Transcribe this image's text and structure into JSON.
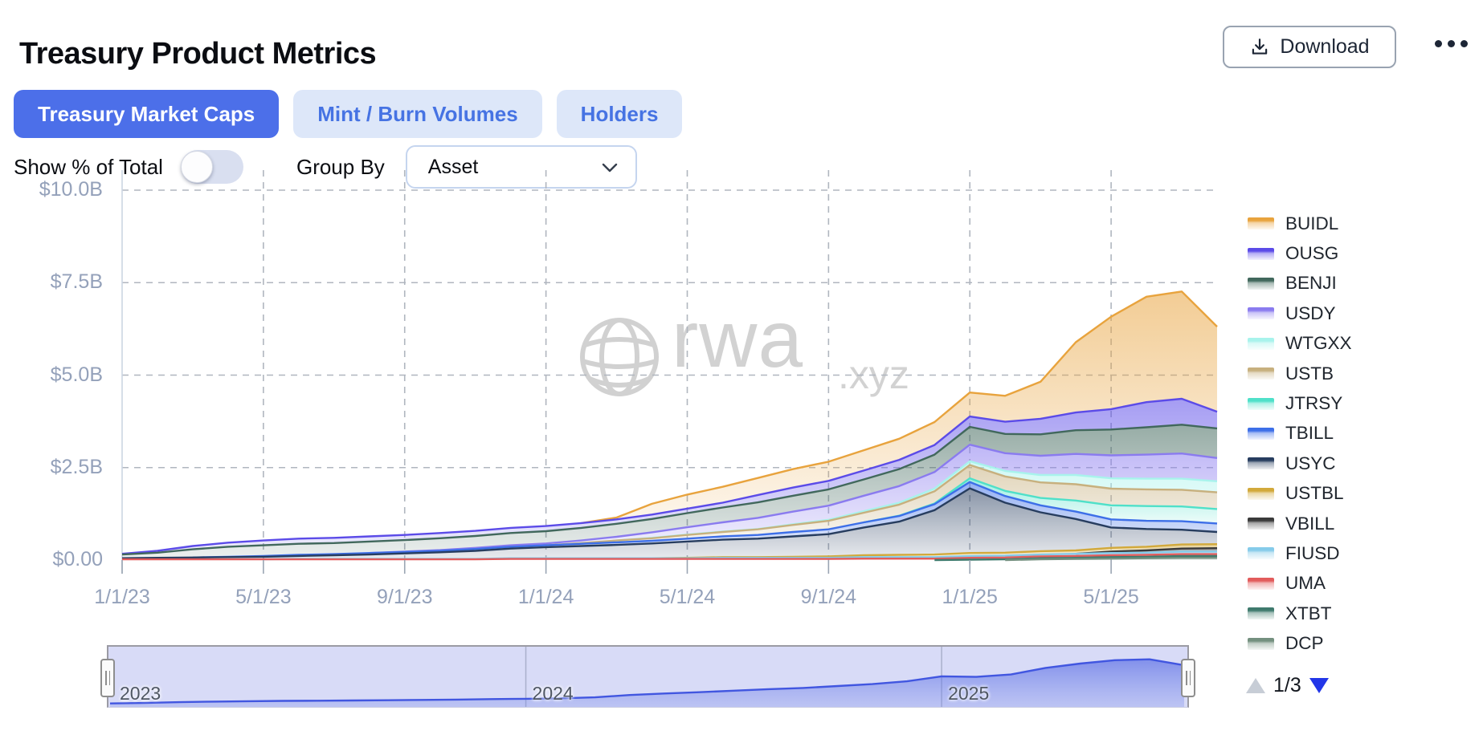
{
  "header": {
    "title": "Treasury Product Metrics",
    "download_label": "Download"
  },
  "tabs": [
    {
      "label": "Treasury Market Caps",
      "active": true
    },
    {
      "label": "Mint / Burn Volumes",
      "active": false
    },
    {
      "label": "Holders",
      "active": false
    }
  ],
  "controls": {
    "show_percent_label": "Show % of Total",
    "show_percent_on": false,
    "group_by_label": "Group By",
    "group_by_value": "Asset"
  },
  "watermark": {
    "main": "rwa",
    "suffix": ".xyz"
  },
  "colors": {
    "accent_blue": "#4c6fe9",
    "tab_inactive_bg": "#dde7f9",
    "axis_label": "#94a1ba",
    "gridline": "#b0b6bf",
    "navigator_bg": "#d8dbf7",
    "navigator_line": "#4156e0"
  },
  "legend": {
    "pagination": {
      "label": "1/3",
      "up_enabled": false,
      "down_enabled": true
    }
  },
  "navigator": {
    "years": [
      "2023",
      "2024",
      "2025"
    ],
    "year_month_index": [
      0,
      12,
      24
    ],
    "range_selected": "full"
  },
  "chart_data": {
    "type": "area",
    "stacked": true,
    "title": "Treasury Product Metrics — Treasury Market Caps",
    "y_unit": "USD billions",
    "ylim": [
      0,
      10
    ],
    "grid": "dashed",
    "legend_position": "right",
    "y_ticks": [
      {
        "label": "$0.00",
        "value": 0
      },
      {
        "label": "$2.5B",
        "value": 2.5
      },
      {
        "label": "$5.0B",
        "value": 5.0
      },
      {
        "label": "$7.5B",
        "value": 7.5
      },
      {
        "label": "$10.0B",
        "value": 10.0
      }
    ],
    "x_monthly_start": "1/2023",
    "x_monthly_end": "8/2025",
    "x_ticks": [
      {
        "label": "1/1/23",
        "month": 0
      },
      {
        "label": "5/1/23",
        "month": 4
      },
      {
        "label": "9/1/23",
        "month": 8
      },
      {
        "label": "1/1/24",
        "month": 12
      },
      {
        "label": "5/1/24",
        "month": 16
      },
      {
        "label": "9/1/24",
        "month": 20
      },
      {
        "label": "1/1/25",
        "month": 24
      },
      {
        "label": "5/1/25",
        "month": 28
      }
    ],
    "stacking_note": "series listed top-of-stack first (legend order); values in $B per month Jan-2023 .. Aug-2025",
    "series": [
      {
        "name": "BUIDL",
        "color": "#e8a33d",
        "values": [
          0,
          0,
          0,
          0,
          0,
          0,
          0,
          0,
          0,
          0,
          0,
          0,
          0,
          0,
          0.05,
          0.29,
          0.38,
          0.43,
          0.46,
          0.5,
          0.52,
          0.55,
          0.57,
          0.62,
          0.65,
          0.7,
          1.0,
          1.9,
          2.5,
          2.85,
          2.9,
          2.3
        ]
      },
      {
        "name": "OUSG",
        "color": "#5b4be8",
        "values": [
          0.02,
          0.05,
          0.09,
          0.11,
          0.13,
          0.14,
          0.14,
          0.14,
          0.14,
          0.14,
          0.14,
          0.14,
          0.14,
          0.13,
          0.12,
          0.12,
          0.12,
          0.13,
          0.2,
          0.22,
          0.23,
          0.24,
          0.25,
          0.26,
          0.28,
          0.33,
          0.42,
          0.48,
          0.55,
          0.68,
          0.7,
          0.45
        ]
      },
      {
        "name": "BENJI",
        "color": "#41685c",
        "values": [
          0.1,
          0.14,
          0.22,
          0.27,
          0.29,
          0.3,
          0.3,
          0.31,
          0.31,
          0.32,
          0.32,
          0.33,
          0.33,
          0.34,
          0.35,
          0.36,
          0.38,
          0.4,
          0.42,
          0.43,
          0.44,
          0.44,
          0.46,
          0.47,
          0.48,
          0.52,
          0.58,
          0.64,
          0.7,
          0.74,
          0.78,
          0.8
        ]
      },
      {
        "name": "USDY",
        "color": "#8a7bef",
        "values": [
          0,
          0,
          0,
          0,
          0,
          0,
          0,
          0,
          0.01,
          0.02,
          0.03,
          0.04,
          0.05,
          0.07,
          0.1,
          0.15,
          0.2,
          0.25,
          0.3,
          0.34,
          0.38,
          0.42,
          0.45,
          0.45,
          0.45,
          0.48,
          0.52,
          0.57,
          0.62,
          0.65,
          0.68,
          0.63
        ]
      },
      {
        "name": "WTGXX",
        "color": "#a8f3ec",
        "values": [
          0,
          0,
          0,
          0,
          0,
          0,
          0,
          0,
          0,
          0,
          0,
          0,
          0,
          0,
          0,
          0.01,
          0.01,
          0.01,
          0.01,
          0.02,
          0.03,
          0.04,
          0.05,
          0.07,
          0.1,
          0.15,
          0.2,
          0.25,
          0.28,
          0.29,
          0.3,
          0.3
        ]
      },
      {
        "name": "USTB",
        "color": "#c7b07e",
        "values": [
          0,
          0,
          0,
          0,
          0,
          0,
          0,
          0,
          0,
          0,
          0,
          0,
          0,
          0.02,
          0.05,
          0.07,
          0.1,
          0.12,
          0.15,
          0.19,
          0.23,
          0.26,
          0.3,
          0.33,
          0.36,
          0.39,
          0.42,
          0.44,
          0.45,
          0.45,
          0.45,
          0.45
        ]
      },
      {
        "name": "JTRSY",
        "color": "#4fe0c9",
        "values": [
          0,
          0,
          0,
          0,
          0,
          0,
          0,
          0,
          0,
          0,
          0,
          0,
          0,
          0,
          0,
          0,
          0,
          0,
          0,
          0,
          0,
          0,
          0.01,
          0.02,
          0.1,
          0.14,
          0.2,
          0.3,
          0.38,
          0.4,
          0.4,
          0.39
        ]
      },
      {
        "name": "TBILL",
        "color": "#3d6fe8",
        "values": [
          0,
          0,
          0,
          0.01,
          0.02,
          0.03,
          0.03,
          0.04,
          0.04,
          0.04,
          0.05,
          0.05,
          0.05,
          0.06,
          0.07,
          0.07,
          0.08,
          0.09,
          0.1,
          0.12,
          0.13,
          0.14,
          0.15,
          0.16,
          0.17,
          0.18,
          0.19,
          0.2,
          0.22,
          0.22,
          0.23,
          0.23
        ]
      },
      {
        "name": "USYC",
        "color": "#273d5f",
        "values": [
          0.03,
          0.04,
          0.05,
          0.06,
          0.07,
          0.08,
          0.1,
          0.12,
          0.15,
          0.18,
          0.22,
          0.26,
          0.3,
          0.33,
          0.36,
          0.4,
          0.44,
          0.47,
          0.5,
          0.55,
          0.6,
          0.75,
          0.9,
          1.2,
          1.75,
          1.35,
          1.05,
          0.85,
          0.55,
          0.48,
          0.4,
          0.33
        ]
      },
      {
        "name": "USTBL",
        "color": "#d2a93b",
        "values": [
          0,
          0,
          0,
          0,
          0,
          0,
          0,
          0,
          0,
          0,
          0,
          0,
          0,
          0,
          0,
          0,
          0.01,
          0.02,
          0.02,
          0.03,
          0.04,
          0.05,
          0.06,
          0.07,
          0.08,
          0.08,
          0.09,
          0.09,
          0.1,
          0.1,
          0.11,
          0.11
        ]
      },
      {
        "name": "VBILL",
        "color": "#3a3a3a",
        "values": [
          0,
          0,
          0,
          0,
          0,
          0,
          0,
          0,
          0,
          0,
          0,
          0,
          0,
          0,
          0,
          0,
          0,
          0,
          0,
          0,
          0,
          0,
          0,
          0,
          0,
          0,
          0,
          0,
          0.04,
          0.06,
          0.08,
          0.09
        ]
      },
      {
        "name": "FIUSD",
        "color": "#85cbea",
        "values": [
          0,
          0,
          0,
          0,
          0,
          0.01,
          0.01,
          0.01,
          0.01,
          0.01,
          0.01,
          0.02,
          0.02,
          0.02,
          0.02,
          0.02,
          0.02,
          0.03,
          0.03,
          0.03,
          0.03,
          0.04,
          0.04,
          0.04,
          0.05,
          0.05,
          0.05,
          0.06,
          0.06,
          0.06,
          0.07,
          0.07
        ]
      },
      {
        "name": "UMA",
        "color": "#e25c5c",
        "values": [
          0.02,
          0.02,
          0.02,
          0.02,
          0.02,
          0.02,
          0.02,
          0.02,
          0.02,
          0.02,
          0.02,
          0.03,
          0.03,
          0.03,
          0.03,
          0.03,
          0.03,
          0.03,
          0.03,
          0.03,
          0.03,
          0.04,
          0.04,
          0.04,
          0.05,
          0.05,
          0.05,
          0.05,
          0.05,
          0.05,
          0.05,
          0.05
        ]
      },
      {
        "name": "XTBT",
        "color": "#3f7a6d",
        "values": [
          0,
          0,
          0,
          0,
          0,
          0,
          0,
          0,
          0,
          0,
          0,
          0,
          0,
          0,
          0,
          0,
          0,
          0,
          0,
          0,
          0,
          0,
          0,
          0,
          0.01,
          0.02,
          0.03,
          0.03,
          0.04,
          0.04,
          0.05,
          0.05
        ]
      },
      {
        "name": "DCP",
        "color": "#74907f",
        "values": [
          0,
          0,
          0,
          0,
          0,
          0,
          0,
          0,
          0,
          0,
          0,
          0,
          0,
          0,
          0,
          0,
          0,
          0,
          0,
          0,
          0,
          0,
          0,
          0,
          0,
          0,
          0.02,
          0.03,
          0.04,
          0.05,
          0.06,
          0.06
        ]
      }
    ]
  }
}
